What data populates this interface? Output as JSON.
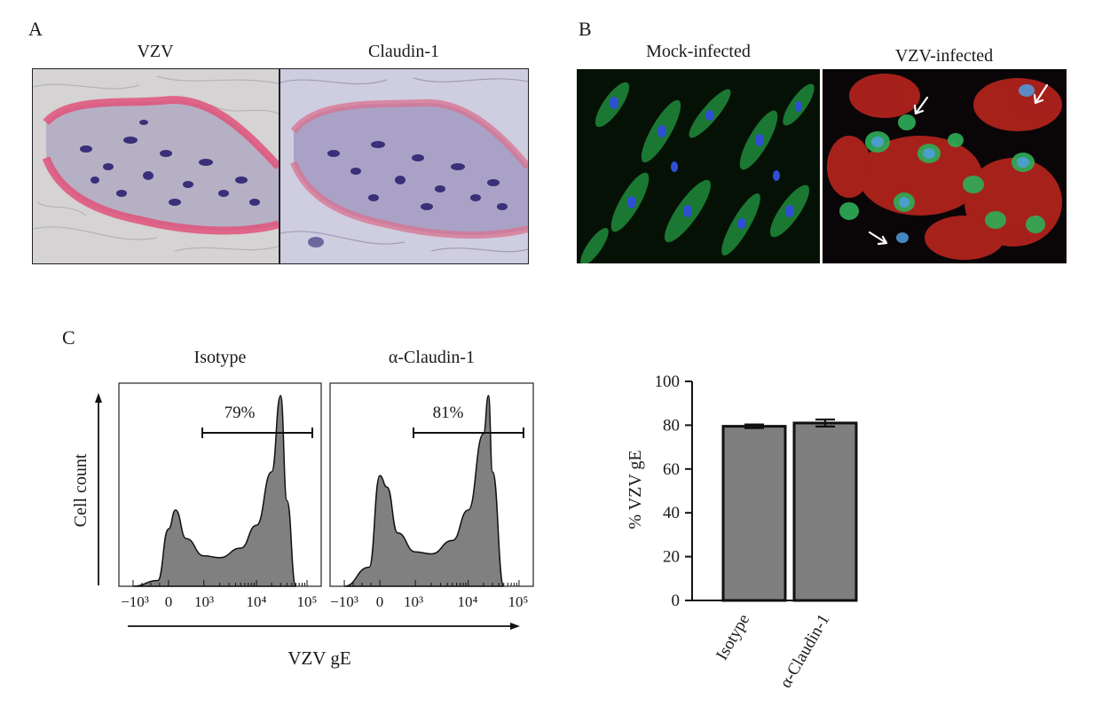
{
  "panel_labels": {
    "a": "A",
    "b": "B",
    "c": "C"
  },
  "panel_a": {
    "titles": [
      "VZV",
      "Claudin-1"
    ]
  },
  "panel_b": {
    "titles": [
      "Mock-infected",
      "VZV-infected"
    ]
  },
  "panel_c": {
    "histogram_titles": [
      "Isotype",
      "α-Claudin-1"
    ],
    "gate_percents": [
      "79%",
      "81%"
    ],
    "y_label": "Cell count",
    "x_label": "VZV gE",
    "x_ticks": [
      "−10³",
      "0",
      "10³",
      "10⁴",
      "10⁵"
    ]
  },
  "colors": {
    "fill": "#808080",
    "bar": "#7f7f7f",
    "ink": "#111111"
  },
  "chart_data": [
    {
      "type": "area",
      "title": "Isotype",
      "xlabel": "VZV gE",
      "ylabel": "Cell count",
      "x_ticks": [
        "−10³",
        "0",
        "10³",
        "10⁴",
        "10⁵"
      ],
      "gate_percent": 79,
      "x": [
        -1000,
        -300,
        0,
        200,
        500,
        1000,
        2000,
        5000,
        10000,
        20000,
        30000,
        40000,
        60000
      ],
      "y": [
        0,
        3,
        30,
        40,
        25,
        16,
        15,
        20,
        32,
        60,
        100,
        45,
        0
      ]
    },
    {
      "type": "area",
      "title": "α-Claudin-1",
      "xlabel": "VZV gE",
      "ylabel": "Cell count",
      "x_ticks": [
        "−10³",
        "0",
        "10³",
        "10⁴",
        "10⁵"
      ],
      "gate_percent": 81,
      "x": [
        -1000,
        -300,
        0,
        200,
        500,
        1000,
        2000,
        5000,
        10000,
        20000,
        25000,
        30000,
        50000
      ],
      "y": [
        0,
        10,
        58,
        52,
        28,
        18,
        17,
        24,
        40,
        80,
        100,
        60,
        0
      ]
    },
    {
      "type": "bar",
      "categories": [
        "Isotype",
        "α-Claudin-1"
      ],
      "values": [
        79.5,
        81.0
      ],
      "errors": [
        0.8,
        1.6
      ],
      "ylabel": "% VZV gE",
      "ylim": [
        0,
        100
      ],
      "yticks": [
        "0",
        "20",
        "40",
        "60",
        "80",
        "100"
      ]
    }
  ]
}
